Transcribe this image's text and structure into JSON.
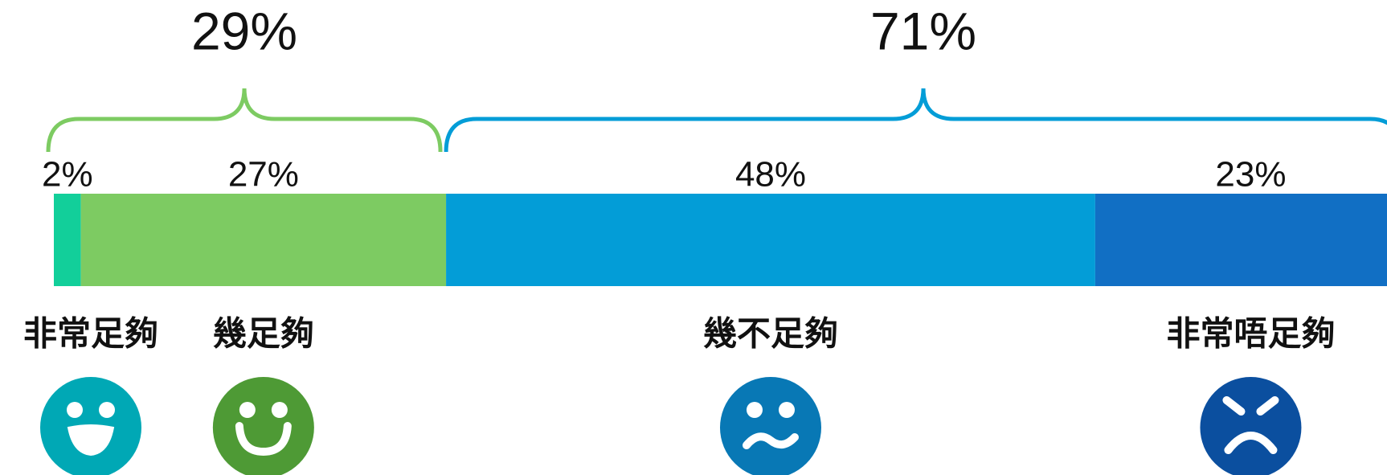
{
  "chart_data": {
    "type": "stacked_bar",
    "categories": [
      "非常足夠",
      "幾足夠",
      "幾不足夠",
      "非常唔足夠"
    ],
    "values": [
      2,
      27,
      48,
      23
    ],
    "value_labels": [
      "2%",
      "27%",
      "48%",
      "23%"
    ],
    "colors": [
      "#12cf9a",
      "#7dcb62",
      "#039dd7",
      "#116fc4"
    ],
    "xlim": [
      0,
      100
    ],
    "groups": [
      {
        "value": 29,
        "label": "29%",
        "color": "#7dcb62"
      },
      {
        "value": 71,
        "label": "71%",
        "color": "#039dd7"
      }
    ]
  }
}
